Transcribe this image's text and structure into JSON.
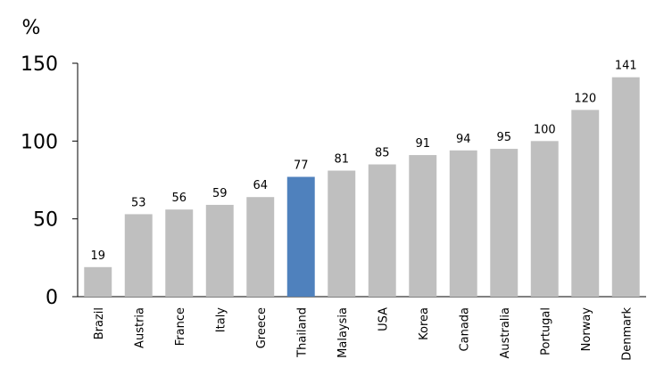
{
  "chart_data": {
    "type": "bar",
    "y_axis_label": "%",
    "categories": [
      "Brazil",
      "Austria",
      "France",
      "Italy",
      "Greece",
      "Thailand",
      "Malaysia",
      "USA",
      "Korea",
      "Canada",
      "Australia",
      "Portugal",
      "Norway",
      "Denmark"
    ],
    "values": [
      19,
      53,
      56,
      59,
      64,
      77,
      81,
      85,
      91,
      94,
      95,
      100,
      120,
      141
    ],
    "colors": [
      "#bfbfbf",
      "#bfbfbf",
      "#bfbfbf",
      "#bfbfbf",
      "#bfbfbf",
      "#4f81bd",
      "#bfbfbf",
      "#bfbfbf",
      "#bfbfbf",
      "#bfbfbf",
      "#bfbfbf",
      "#bfbfbf",
      "#bfbfbf",
      "#bfbfbf"
    ],
    "ylim": [
      0,
      150
    ],
    "yticks": [
      0,
      50,
      100,
      150
    ],
    "grid": false
  }
}
